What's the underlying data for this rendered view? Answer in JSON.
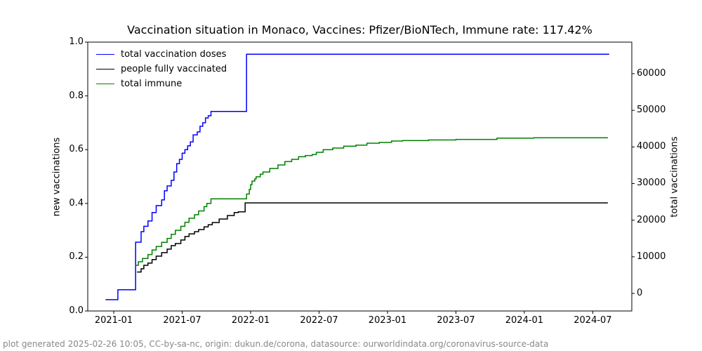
{
  "title": "Vaccination situation in Monaco, Vaccines: Pfizer/BioNTech, Immune rate: 117.42%",
  "footer": "plot generated 2025-02-26 10:05, CC-by-sa-nc, origin: dukun.de/corona, datasource: ourworldindata.org/coronavirus-source-data",
  "chart_data": {
    "type": "line",
    "title": "Vaccination situation in Monaco, Vaccines: Pfizer/BioNTech, Immune rate: 117.42%",
    "left_ylabel": "new vaccinations",
    "right_ylabel": "total vaccinations",
    "grid": false,
    "legend_position": "upper-left",
    "frame_color": "#000000",
    "xlim": [
      2020.81,
      2024.785
    ],
    "left_ylim": [
      0,
      1.0
    ],
    "right_ylim": [
      -4790,
      68620
    ],
    "x_ticks": [
      {
        "v": 2021.0,
        "label": "2021-01"
      },
      {
        "v": 2021.5,
        "label": "2021-07"
      },
      {
        "v": 2022.0,
        "label": "2022-01"
      },
      {
        "v": 2022.5,
        "label": "2022-07"
      },
      {
        "v": 2023.0,
        "label": "2023-01"
      },
      {
        "v": 2023.5,
        "label": "2023-07"
      },
      {
        "v": 2024.0,
        "label": "2024-01"
      },
      {
        "v": 2024.5,
        "label": "2024-07"
      }
    ],
    "left_ticks": [
      {
        "v": 0.0,
        "label": "0.0"
      },
      {
        "v": 0.2,
        "label": "0.2"
      },
      {
        "v": 0.4,
        "label": "0.4"
      },
      {
        "v": 0.6,
        "label": "0.6"
      },
      {
        "v": 0.8,
        "label": "0.8"
      },
      {
        "v": 1.0,
        "label": "1.0"
      }
    ],
    "right_ticks": [
      {
        "v": 0,
        "label": "0"
      },
      {
        "v": 10000,
        "label": "10000"
      },
      {
        "v": 20000,
        "label": "20000"
      },
      {
        "v": 30000,
        "label": "30000"
      },
      {
        "v": 40000,
        "label": "40000"
      },
      {
        "v": 50000,
        "label": "50000"
      },
      {
        "v": 60000,
        "label": "60000"
      }
    ],
    "series": [
      {
        "name": "total vaccination doses",
        "color": "#0000ff",
        "mode": "step",
        "points": [
          [
            2020.94,
            0.042
          ],
          [
            2021.03,
            0.079
          ],
          [
            2021.16,
            0.256
          ],
          [
            2021.2,
            0.295
          ],
          [
            2021.22,
            0.315
          ],
          [
            2021.25,
            0.335
          ],
          [
            2021.28,
            0.366
          ],
          [
            2021.31,
            0.392
          ],
          [
            2021.35,
            0.413
          ],
          [
            2021.37,
            0.447
          ],
          [
            2021.39,
            0.465
          ],
          [
            2021.42,
            0.486
          ],
          [
            2021.44,
            0.517
          ],
          [
            2021.46,
            0.548
          ],
          [
            2021.48,
            0.564
          ],
          [
            2021.5,
            0.587
          ],
          [
            2021.52,
            0.6
          ],
          [
            2021.54,
            0.614
          ],
          [
            2021.56,
            0.629
          ],
          [
            2021.58,
            0.655
          ],
          [
            2021.61,
            0.666
          ],
          [
            2021.63,
            0.687
          ],
          [
            2021.65,
            0.7
          ],
          [
            2021.67,
            0.718
          ],
          [
            2021.69,
            0.726
          ],
          [
            2021.71,
            0.742
          ],
          [
            2021.97,
            0.955
          ],
          [
            2024.62,
            0.955
          ]
        ]
      },
      {
        "name": "people fully vaccinated",
        "color": "#000000",
        "mode": "step",
        "points": [
          [
            2021.17,
            0.145
          ],
          [
            2021.2,
            0.157
          ],
          [
            2021.22,
            0.17
          ],
          [
            2021.25,
            0.178
          ],
          [
            2021.28,
            0.191
          ],
          [
            2021.31,
            0.204
          ],
          [
            2021.35,
            0.217
          ],
          [
            2021.39,
            0.23
          ],
          [
            2021.42,
            0.243
          ],
          [
            2021.45,
            0.251
          ],
          [
            2021.49,
            0.264
          ],
          [
            2021.52,
            0.277
          ],
          [
            2021.55,
            0.287
          ],
          [
            2021.59,
            0.295
          ],
          [
            2021.62,
            0.303
          ],
          [
            2021.66,
            0.313
          ],
          [
            2021.69,
            0.321
          ],
          [
            2021.72,
            0.329
          ],
          [
            2021.77,
            0.342
          ],
          [
            2021.83,
            0.355
          ],
          [
            2021.88,
            0.366
          ],
          [
            2021.91,
            0.369
          ],
          [
            2021.96,
            0.402
          ],
          [
            2024.61,
            0.402
          ]
        ]
      },
      {
        "name": "total immune",
        "color": "#008000",
        "mode": "step",
        "points": [
          [
            2021.16,
            0.17
          ],
          [
            2021.18,
            0.183
          ],
          [
            2021.21,
            0.195
          ],
          [
            2021.25,
            0.21
          ],
          [
            2021.28,
            0.227
          ],
          [
            2021.31,
            0.24
          ],
          [
            2021.35,
            0.255
          ],
          [
            2021.39,
            0.27
          ],
          [
            2021.42,
            0.285
          ],
          [
            2021.45,
            0.3
          ],
          [
            2021.49,
            0.315
          ],
          [
            2021.52,
            0.33
          ],
          [
            2021.55,
            0.345
          ],
          [
            2021.59,
            0.358
          ],
          [
            2021.62,
            0.372
          ],
          [
            2021.66,
            0.388
          ],
          [
            2021.68,
            0.4
          ],
          [
            2021.71,
            0.417
          ],
          [
            2021.95,
            0.417
          ],
          [
            2021.97,
            0.435
          ],
          [
            2021.99,
            0.452
          ],
          [
            2022.0,
            0.47
          ],
          [
            2022.01,
            0.483
          ],
          [
            2022.03,
            0.491
          ],
          [
            2022.04,
            0.499
          ],
          [
            2022.07,
            0.509
          ],
          [
            2022.09,
            0.517
          ],
          [
            2022.14,
            0.53
          ],
          [
            2022.2,
            0.543
          ],
          [
            2022.25,
            0.556
          ],
          [
            2022.3,
            0.564
          ],
          [
            2022.35,
            0.574
          ],
          [
            2022.4,
            0.578
          ],
          [
            2022.45,
            0.582
          ],
          [
            2022.48,
            0.59
          ],
          [
            2022.53,
            0.6
          ],
          [
            2022.6,
            0.606
          ],
          [
            2022.68,
            0.613
          ],
          [
            2022.77,
            0.617
          ],
          [
            2022.85,
            0.624
          ],
          [
            2022.94,
            0.627
          ],
          [
            2023.03,
            0.632
          ],
          [
            2023.11,
            0.634
          ],
          [
            2023.3,
            0.636
          ],
          [
            2023.5,
            0.638
          ],
          [
            2023.8,
            0.643
          ],
          [
            2024.07,
            0.6445
          ],
          [
            2024.61,
            0.6445
          ]
        ]
      }
    ],
    "approx_final_totals_right_axis": {
      "total_vaccination_doses": 65300,
      "people_fully_vaccinated": 24700,
      "total_immune": 42500
    }
  }
}
